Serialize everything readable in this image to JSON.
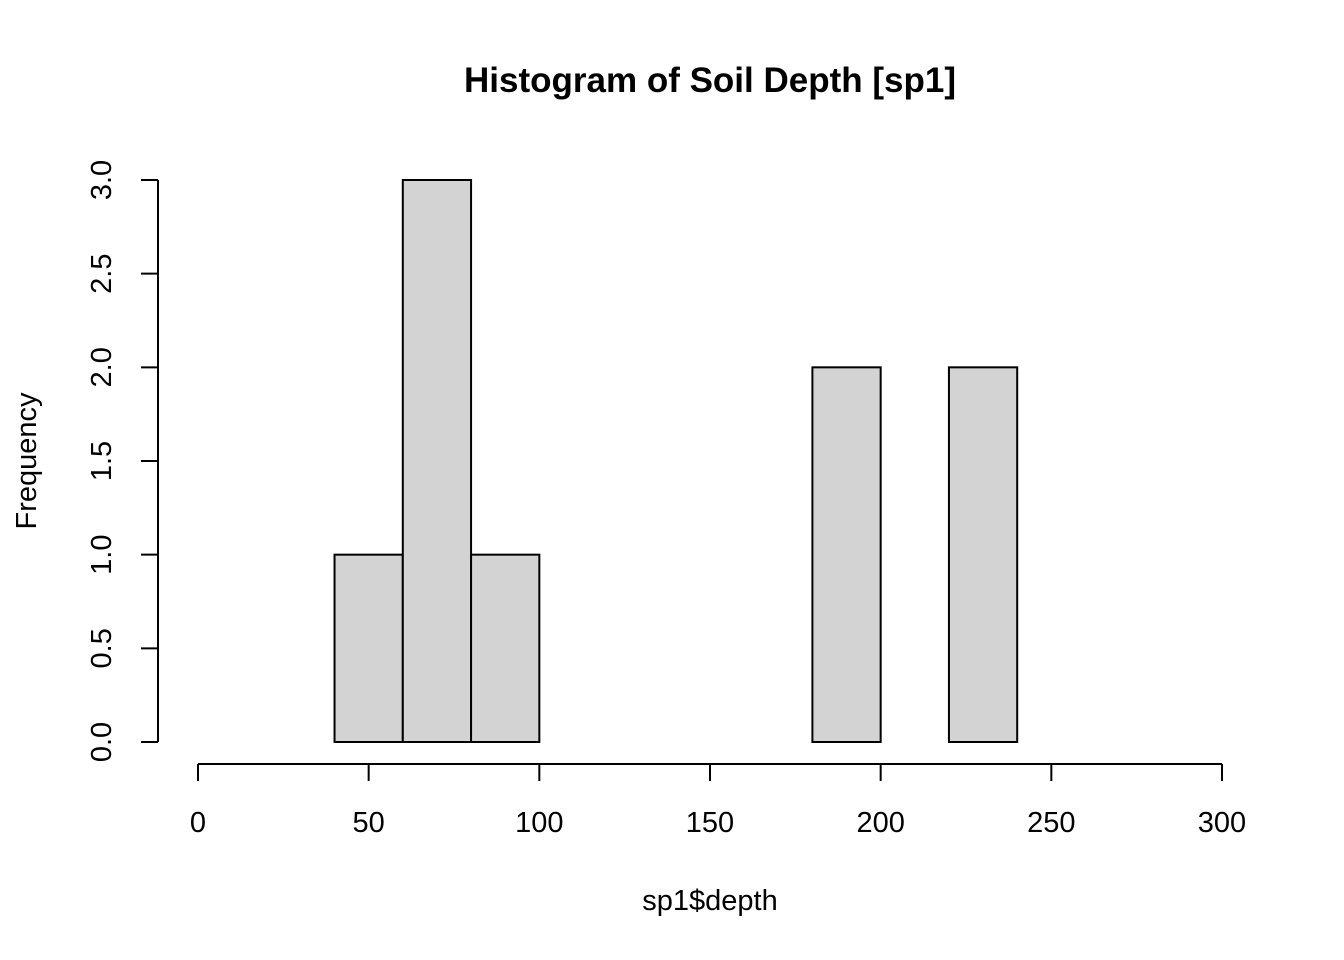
{
  "chart_data": {
    "type": "bar",
    "title": "Histogram of Soil Depth [sp1]",
    "xlabel": "sp1$depth",
    "ylabel": "Frequency",
    "bins": [
      {
        "x0": 40,
        "x1": 60,
        "count": 1
      },
      {
        "x0": 60,
        "x1": 80,
        "count": 3
      },
      {
        "x0": 80,
        "x1": 100,
        "count": 1
      },
      {
        "x0": 100,
        "x1": 120,
        "count": 0
      },
      {
        "x0": 120,
        "x1": 140,
        "count": 0
      },
      {
        "x0": 140,
        "x1": 160,
        "count": 0
      },
      {
        "x0": 160,
        "x1": 180,
        "count": 0
      },
      {
        "x0": 180,
        "x1": 200,
        "count": 2
      },
      {
        "x0": 200,
        "x1": 220,
        "count": 0
      },
      {
        "x0": 220,
        "x1": 240,
        "count": 2
      }
    ],
    "xlim": [
      0,
      300
    ],
    "ylim": [
      0,
      3
    ],
    "x_ticks": [
      0,
      50,
      100,
      150,
      200,
      250,
      300
    ],
    "y_ticks": [
      0.0,
      0.5,
      1.0,
      1.5,
      2.0,
      2.5,
      3.0
    ],
    "x_tick_labels": [
      "0",
      "50",
      "100",
      "150",
      "200",
      "250",
      "300"
    ],
    "y_tick_labels": [
      "0.0",
      "0.5",
      "1.0",
      "1.5",
      "2.0",
      "2.5",
      "3.0"
    ],
    "bar_color": "#d3d3d3",
    "grid": false,
    "legend": "none"
  }
}
